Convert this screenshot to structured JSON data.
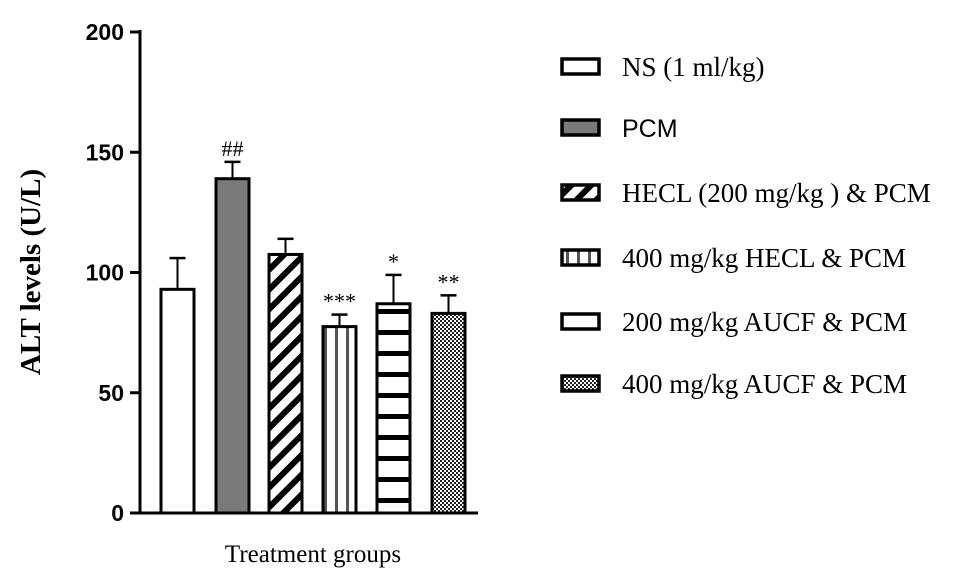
{
  "chart_data": {
    "type": "bar",
    "title": "",
    "xlabel": "Treatment groups",
    "ylabel": "ALT levels (U/L)",
    "ylim": [
      0,
      200
    ],
    "yticks": [
      0,
      50,
      100,
      150,
      200
    ],
    "grid": false,
    "legend_position": "right",
    "categories": [
      "NS (1 ml/kg)",
      "PCM",
      "HECL (200 mg/kg ) & PCM",
      "400 mg/kg HECL & PCM",
      "200 mg/kg AUCF & PCM",
      "400 mg/kg AUCF & PCM"
    ],
    "values": [
      93,
      139,
      107.5,
      77.5,
      87,
      83
    ],
    "error_upper": [
      106,
      146,
      114,
      82.5,
      99,
      90.5
    ],
    "annotations": [
      "",
      "##",
      "",
      "***",
      "*",
      "**"
    ],
    "patterns": [
      "white",
      "gray",
      "diagonal",
      "vertical",
      "horizontal",
      "checker"
    ],
    "colors": {
      "gray": "#7a7a7a",
      "line": "#000000"
    }
  }
}
